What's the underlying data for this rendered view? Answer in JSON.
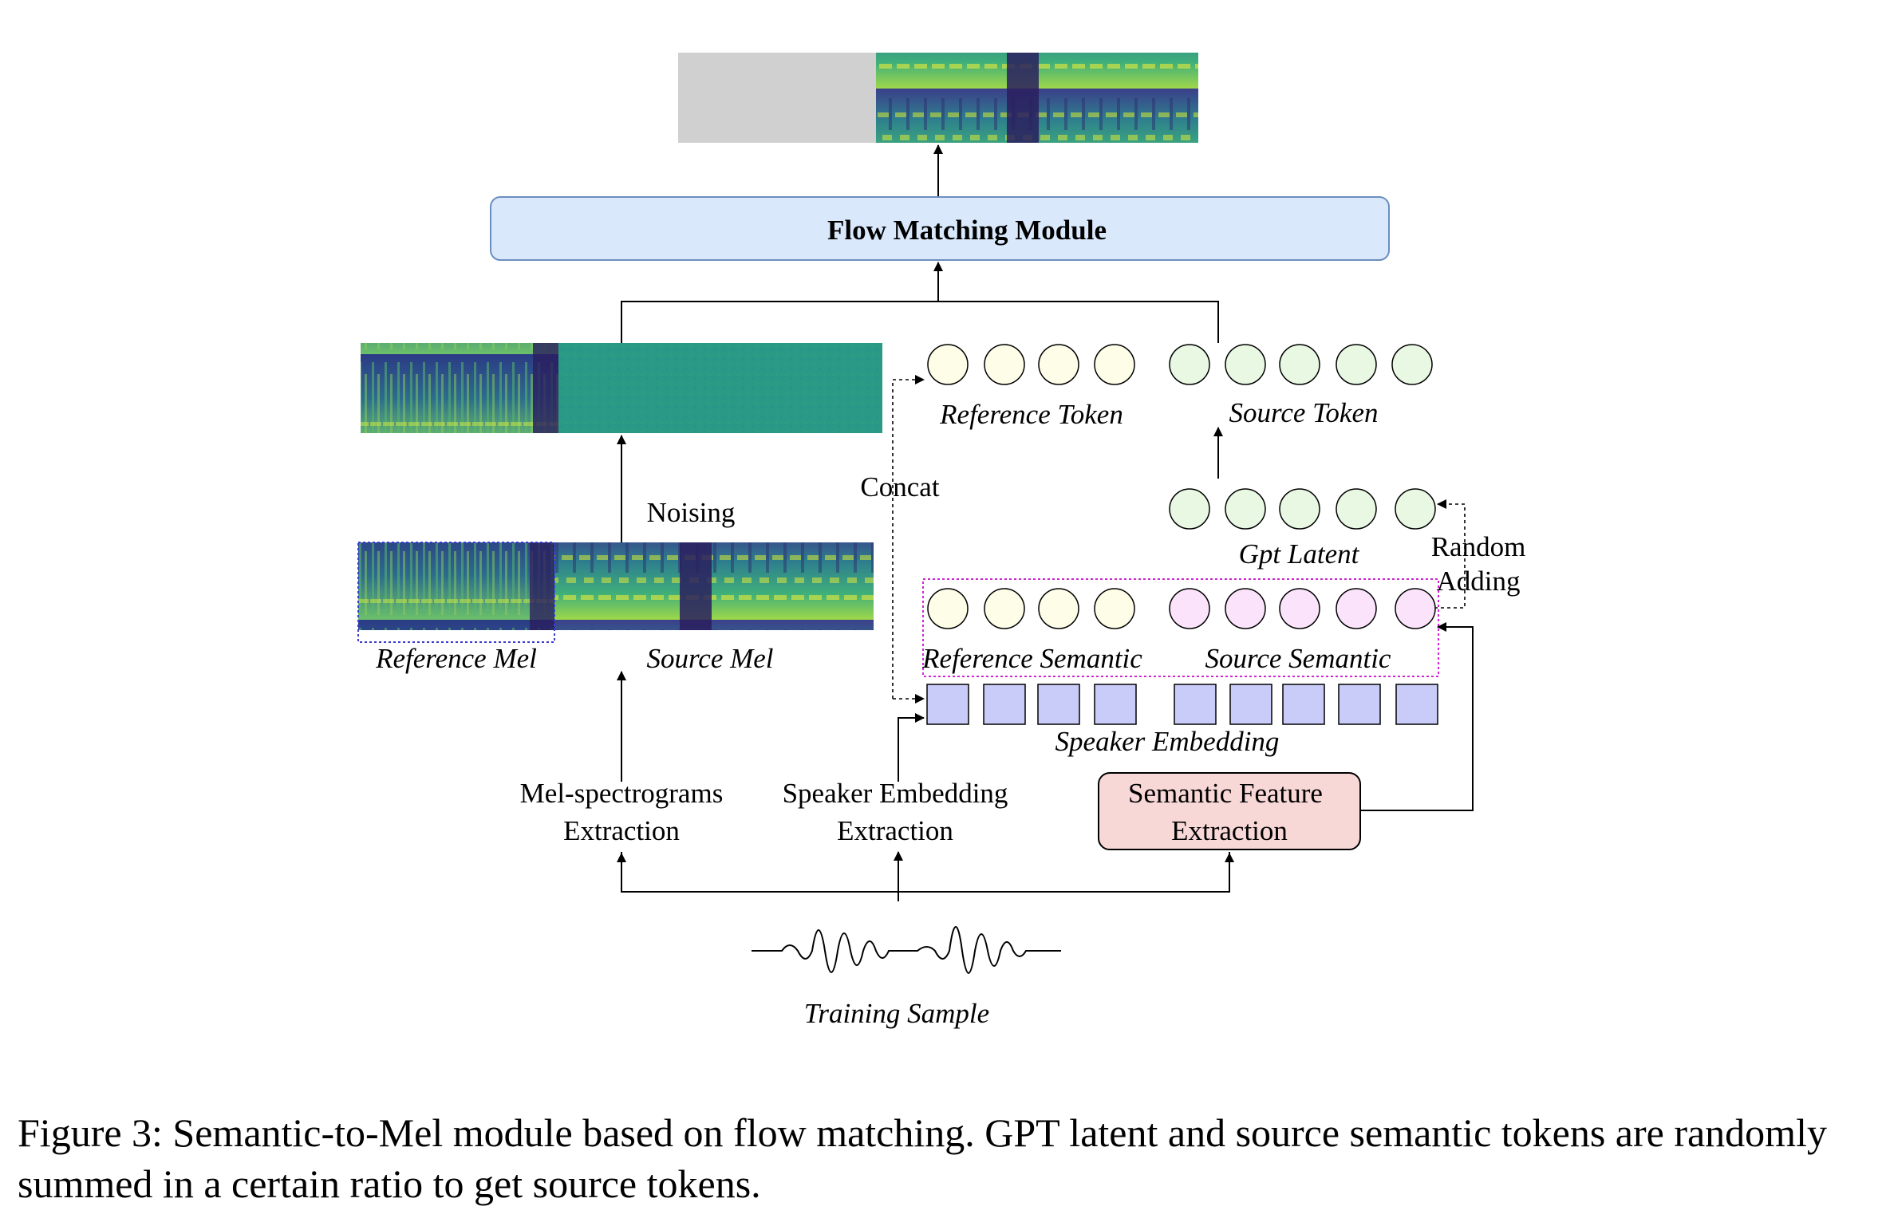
{
  "diagram": {
    "output_label": "",
    "flow_module": "Flow Matching Module",
    "reference_token": "Reference Token",
    "source_token": "Source Token",
    "concat": "Concat",
    "noising": "Noising",
    "gpt_latent": "Gpt Latent",
    "random_adding_1": "Random",
    "random_adding_2": "Adding",
    "reference_mel": "Reference Mel",
    "source_mel": "Source Mel",
    "reference_semantic": "Reference Semantic",
    "source_semantic": "Source Semantic",
    "speaker_embedding": "Speaker Embedding",
    "mel_extraction_1": "Mel-spectrograms",
    "mel_extraction_2": "Extraction",
    "spk_extraction_1": "Speaker Embedding",
    "spk_extraction_2": "Extraction",
    "sem_extraction_1": "Semantic Feature",
    "sem_extraction_2": "Extraction",
    "training_sample": "Training Sample"
  },
  "colors": {
    "flow_box_fill": "#dae8fc",
    "flow_box_stroke": "#6c8ebf",
    "semantic_box_fill": "#f8d7d7",
    "reference_circle": "#fdfde8",
    "source_token_circle": "#e8f8e2",
    "source_semantic_circle": "#fbe4fb",
    "speaker_square": "#c9ccf8",
    "semantic_group_border": "#d024d0",
    "ref_mel_border": "#3b3bd0",
    "masked_region": "#d0d0d0",
    "noise_green": "#2a9a86"
  },
  "caption": "Figure 3: Semantic-to-Mel module based on flow matching. GPT latent and source semantic tokens are randomly summed in a certain ratio to get source tokens."
}
